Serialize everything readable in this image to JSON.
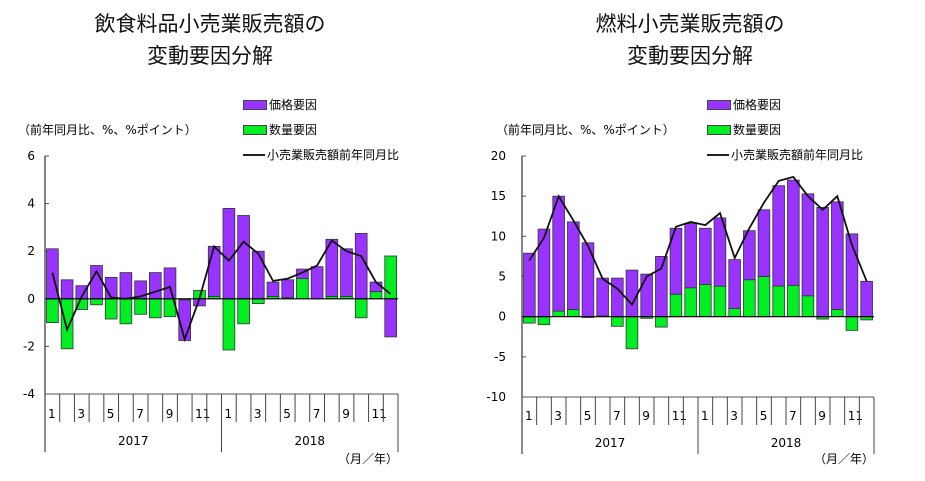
{
  "chart_data": [
    {
      "type": "bar",
      "title": "飲食料品小売業販売額の変動要因分解",
      "title_lines": [
        "飲食料品小売業販売額の",
        "変動要因分解"
      ],
      "ylabel": "（前年同月比、%、%ポイント）",
      "xlabel": "（月／年）",
      "ylim": [
        -4,
        6
      ],
      "yticks": [
        "6",
        "4",
        "2",
        "0",
        "-2",
        "-4"
      ],
      "ytick_values": [
        6,
        4,
        2,
        0,
        -2,
        -4
      ],
      "month_labels": [
        "1",
        "",
        "3",
        "",
        "5",
        "",
        "7",
        "",
        "9",
        "",
        "11",
        "",
        "1",
        "",
        "3",
        "",
        "5",
        "",
        "7",
        "",
        "9",
        "",
        "11",
        ""
      ],
      "year_labels": [
        "2017",
        "2018"
      ],
      "legend": [
        "価格要因",
        "数量要因",
        "小売業販売額前年同月比"
      ],
      "series": [
        {
          "name": "価格要因",
          "kind": "bar",
          "values": [
            2.1,
            0.8,
            0.55,
            1.4,
            0.9,
            1.1,
            0.75,
            1.1,
            1.3,
            -1.7,
            -0.3,
            2.1,
            3.8,
            3.5,
            2.0,
            0.6,
            0.75,
            0.4,
            1.35,
            2.4,
            2.0,
            2.75,
            0.4,
            -1.6
          ]
        },
        {
          "name": "数量要因",
          "kind": "bar",
          "values": [
            -1.0,
            -2.1,
            -0.45,
            -0.25,
            -0.85,
            -1.05,
            -0.65,
            -0.8,
            -0.75,
            -0.05,
            0.35,
            0.1,
            -2.15,
            -1.05,
            -0.2,
            0.1,
            0.05,
            0.85,
            0.0,
            0.1,
            0.1,
            -0.8,
            0.3,
            1.8
          ]
        },
        {
          "name": "小売業販売額前年同月比",
          "kind": "line",
          "values": [
            1.1,
            -1.3,
            0.1,
            1.15,
            0.05,
            0.0,
            0.1,
            0.3,
            0.5,
            -1.7,
            0.0,
            2.2,
            1.6,
            2.4,
            1.9,
            0.75,
            0.85,
            1.1,
            1.4,
            2.45,
            2.0,
            1.8,
            0.7,
            0.2
          ]
        }
      ]
    },
    {
      "type": "bar",
      "title": "燃料小売業販売額の変動要因分解",
      "title_lines": [
        "燃料小売業販売額の",
        "変動要因分解"
      ],
      "ylabel": "（前年同月比、%、%ポイント）",
      "xlabel": "（月／年）",
      "ylim": [
        -10,
        20
      ],
      "yticks": [
        "20",
        "15",
        "10",
        "5",
        "0",
        "-5",
        "-10"
      ],
      "ytick_values": [
        20,
        15,
        10,
        5,
        0,
        -5,
        -10
      ],
      "month_labels": [
        "1",
        "",
        "3",
        "",
        "5",
        "",
        "7",
        "",
        "9",
        "",
        "11",
        "",
        "1",
        "",
        "3",
        "",
        "5",
        "",
        "7",
        "",
        "9",
        "",
        "11",
        ""
      ],
      "year_labels": [
        "2017",
        "2018"
      ],
      "legend": [
        "価格要因",
        "数量要因",
        "小売業販売額前年同月比"
      ],
      "series": [
        {
          "name": "価格要因",
          "kind": "bar",
          "values": [
            7.9,
            10.9,
            14.3,
            10.9,
            9.2,
            4.7,
            4.8,
            5.8,
            5.3,
            7.5,
            8.2,
            8.0,
            7.0,
            8.5,
            6.1,
            6.1,
            8.3,
            12.5,
            13.1,
            12.7,
            13.6,
            13.4,
            10.3,
            4.4
          ]
        },
        {
          "name": "数量要因",
          "kind": "bar",
          "values": [
            -0.8,
            -1.0,
            0.7,
            0.9,
            -0.1,
            0.1,
            -1.2,
            -4.0,
            -0.2,
            -1.3,
            2.8,
            3.6,
            4.0,
            3.8,
            1.0,
            4.6,
            5.0,
            3.8,
            3.9,
            2.6,
            -0.3,
            0.9,
            -1.7,
            -0.4
          ]
        },
        {
          "name": "小売業販売額前年同月比",
          "kind": "line",
          "values": [
            7.0,
            9.8,
            15.0,
            12.0,
            8.8,
            4.7,
            3.5,
            1.5,
            5.0,
            6.0,
            11.2,
            11.8,
            11.4,
            12.9,
            7.3,
            11.0,
            14.2,
            16.9,
            17.4,
            15.0,
            13.3,
            15.0,
            8.9,
            4.4
          ]
        }
      ]
    }
  ],
  "colors": {
    "price": "#9933ff",
    "quantity": "#00ee22",
    "line": "#111111"
  }
}
